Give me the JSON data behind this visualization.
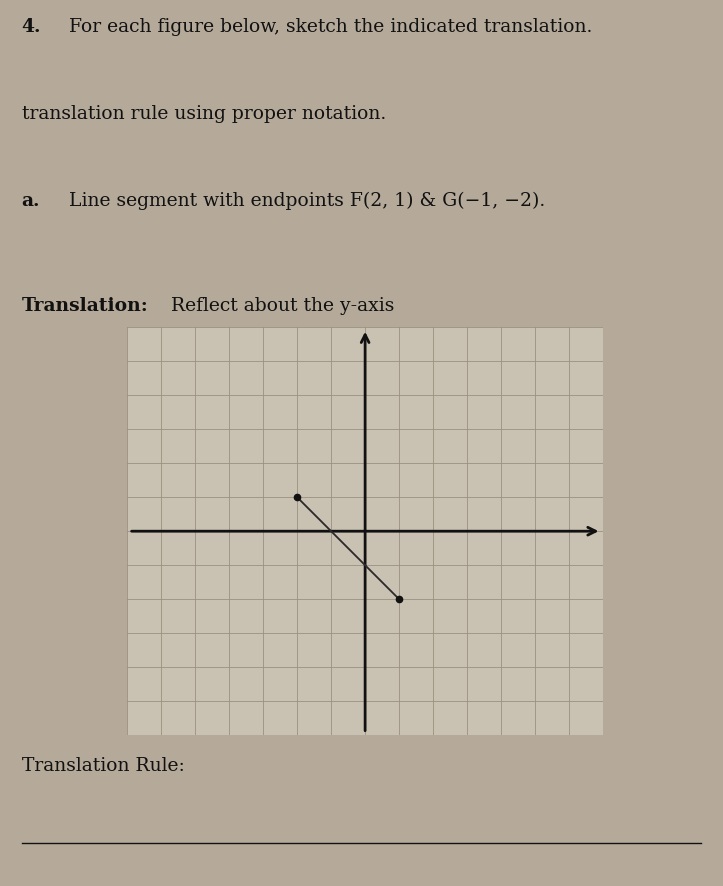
{
  "title_number": "4.",
  "title_line1": "For each figure below, sketch the indicated translation.",
  "title_line2": "translation rule using proper notation.",
  "part_label": "a.",
  "part_text": "Line segment with endpoints F(2, 1) & G(−1, −2).",
  "translation_label": "Translation:",
  "translation_text": "Reflect about the y-axis",
  "translation_rule_label": "Translation Rule:",
  "background_color": "#c9c1b2",
  "grid_color": "#9a9080",
  "axis_color": "#111111",
  "segment_color": "#2a2a2a",
  "dot_color": "#111111",
  "text_color": "#111111",
  "grid_xlim": [
    -7,
    7
  ],
  "grid_ylim": [
    -6,
    6
  ],
  "F_original": [
    2,
    1
  ],
  "G_original": [
    -1,
    -2
  ],
  "F_reflected": [
    -2,
    1
  ],
  "G_reflected": [
    1,
    -2
  ],
  "segment_linewidth": 1.3,
  "axis_linewidth": 2.0,
  "page_bg": "#b5aa9a"
}
